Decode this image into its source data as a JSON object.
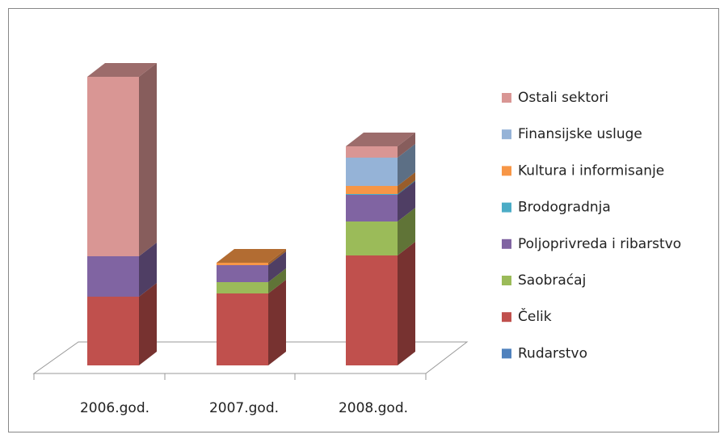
{
  "chart_data": {
    "type": "bar3d_stacked",
    "categories": [
      "2006.god.",
      "2007.god.",
      "2008.god."
    ],
    "series": [
      {
        "name": "Rudarstvo",
        "color": "#4f81bd",
        "values": [
          0,
          0,
          0
        ]
      },
      {
        "name": "Čelik",
        "color": "#c0504d",
        "values": [
          85,
          89,
          136
        ]
      },
      {
        "name": "Saobraćaj",
        "color": "#9bbb59",
        "values": [
          0,
          14,
          42
        ]
      },
      {
        "name": "Poljoprivreda i ribarstvo",
        "color": "#8064a2",
        "values": [
          50,
          21,
          33
        ]
      },
      {
        "name": "Brodogradnja",
        "color": "#4bacc6",
        "values": [
          0,
          0,
          1
        ]
      },
      {
        "name": "Kultura i informisanje",
        "color": "#f79646",
        "values": [
          0,
          3,
          10
        ]
      },
      {
        "name": "Finansijske usluge",
        "color": "#95b3d7",
        "values": [
          0,
          0,
          35
        ]
      },
      {
        "name": "Ostali sektori",
        "color": "#d99694",
        "values": [
          222,
          0,
          14
        ]
      }
    ],
    "ylim": [
      0,
      360
    ]
  }
}
